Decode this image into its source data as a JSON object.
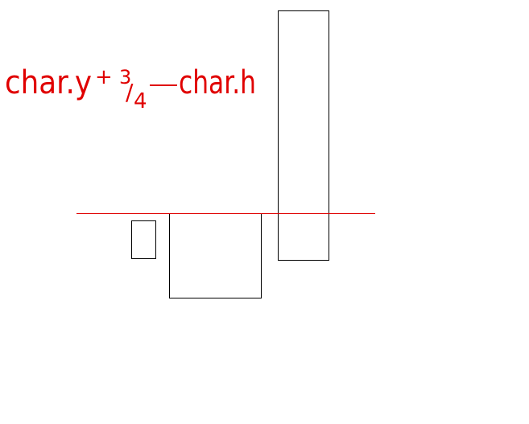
{
  "annotation": {
    "left": "char.y",
    "plus": "+",
    "numerator": "3",
    "slash": "/",
    "denominator": "4",
    "right": "char.h"
  }
}
